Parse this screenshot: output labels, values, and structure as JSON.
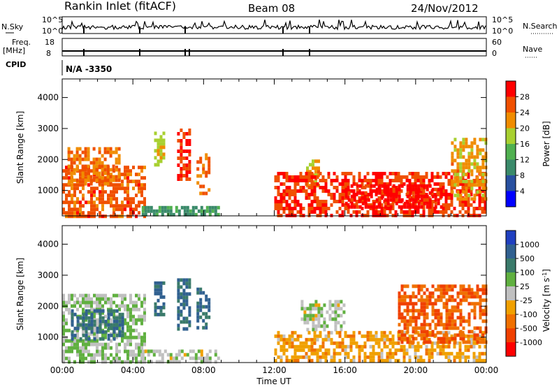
{
  "header": {
    "station": "Rankin Inlet (fitACF)",
    "beam": "Beam 08",
    "date": "24/Nov/2012"
  },
  "top_panels": {
    "nsky_label": "N.Sky",
    "nsearch_label": "N.Search",
    "freq_label_1": "Freq.",
    "freq_label_2": "[MHz]",
    "nave_label": "Nave",
    "cpid_label": "CPID",
    "cpid_value": "N/A  -3350",
    "nsky_tick_hi": "10^5",
    "nsky_tick_lo": "10^0",
    "freq_tick_hi": "18",
    "freq_tick_lo": "8",
    "nave_tick_hi": "60",
    "nave_tick_lo": "0"
  },
  "colors": {
    "power": [
      "#0000ff",
      "#2850a0",
      "#3a8a6a",
      "#50b050",
      "#a8d030",
      "#f08c00",
      "#f05000",
      "#ff0000"
    ],
    "velocity": [
      "#2040c0",
      "#306090",
      "#3a7a6a",
      "#60b040",
      "#c0c0c0",
      "#f0a000",
      "#f07000",
      "#f04000",
      "#ff0000"
    ]
  },
  "chart_data": [
    {
      "type": "heatmap",
      "name": "power",
      "ylabel": "Slant Range [km]",
      "xlabel": "",
      "xlim": [
        0,
        24
      ],
      "ylim": [
        180,
        4600
      ],
      "x_ticks": [
        "00:00",
        "04:00",
        "08:00",
        "12:00",
        "16:00",
        "20:00",
        "00:00"
      ],
      "y_ticks": [
        1000,
        2000,
        3000,
        4000
      ],
      "colorbar": {
        "label": "Power [dB]",
        "ticks": [
          "4",
          "8",
          "12",
          "16",
          "20",
          "24",
          "28"
        ],
        "range": [
          0,
          30
        ]
      },
      "features": [
        {
          "t0": 0.0,
          "t1": 4.6,
          "r0": 200,
          "r1": 1800,
          "v": 24
        },
        {
          "t0": 0.3,
          "t1": 3.2,
          "r0": 1200,
          "r1": 2400,
          "v": 22
        },
        {
          "t0": 4.5,
          "t1": 8.9,
          "r0": 180,
          "r1": 500,
          "v": 10
        },
        {
          "t0": 5.2,
          "t1": 5.8,
          "r0": 1800,
          "r1": 2900,
          "v": 18
        },
        {
          "t0": 6.5,
          "t1": 7.2,
          "r0": 1400,
          "r1": 3000,
          "v": 26
        },
        {
          "t0": 7.6,
          "t1": 8.3,
          "r0": 900,
          "r1": 2200,
          "v": 22
        },
        {
          "t0": 13.8,
          "t1": 14.5,
          "r0": 1200,
          "r1": 2000,
          "v": 20
        },
        {
          "t0": 12.0,
          "t1": 24.0,
          "r0": 200,
          "r1": 1600,
          "v": 26
        },
        {
          "t0": 16.0,
          "t1": 21.5,
          "r0": 500,
          "r1": 1200,
          "v": 28
        },
        {
          "t0": 22.0,
          "t1": 24.0,
          "r0": 700,
          "r1": 2700,
          "v": 20
        }
      ]
    },
    {
      "type": "heatmap",
      "name": "velocity",
      "ylabel": "Slant Range [km]",
      "xlabel": "Time UT",
      "xlim": [
        0,
        24
      ],
      "ylim": [
        180,
        4600
      ],
      "x_ticks": [
        "00:00",
        "04:00",
        "08:00",
        "12:00",
        "16:00",
        "20:00",
        "00:00"
      ],
      "y_ticks": [
        1000,
        2000,
        3000,
        4000
      ],
      "colorbar": {
        "label": "Velocity [m s^-1]",
        "ticks": [
          "1000",
          "500",
          "100",
          "25",
          "-25",
          "-100",
          "-500",
          "-1000"
        ],
        "range": [
          -1250,
          1250
        ]
      },
      "features": [
        {
          "t0": 0.0,
          "t1": 4.6,
          "r0": 200,
          "r1": 2400,
          "v": 150
        },
        {
          "t0": 0.5,
          "t1": 3.5,
          "r0": 900,
          "r1": 1900,
          "v": 700
        },
        {
          "t0": 5.2,
          "t1": 5.8,
          "r0": 1700,
          "r1": 2800,
          "v": 700
        },
        {
          "t0": 6.5,
          "t1": 7.2,
          "r0": 1300,
          "r1": 2900,
          "v": 700
        },
        {
          "t0": 7.6,
          "t1": 8.3,
          "r0": 1300,
          "r1": 2600,
          "v": 700
        },
        {
          "t0": 4.5,
          "t1": 8.9,
          "r0": 180,
          "r1": 600,
          "v": 50
        },
        {
          "t0": 13.5,
          "t1": 16.0,
          "r0": 1200,
          "r1": 2200,
          "v": 60
        },
        {
          "t0": 12.0,
          "t1": 24.0,
          "r0": 200,
          "r1": 1200,
          "v": -300
        },
        {
          "t0": 19.0,
          "t1": 24.0,
          "r0": 800,
          "r1": 2700,
          "v": -700
        }
      ]
    }
  ]
}
